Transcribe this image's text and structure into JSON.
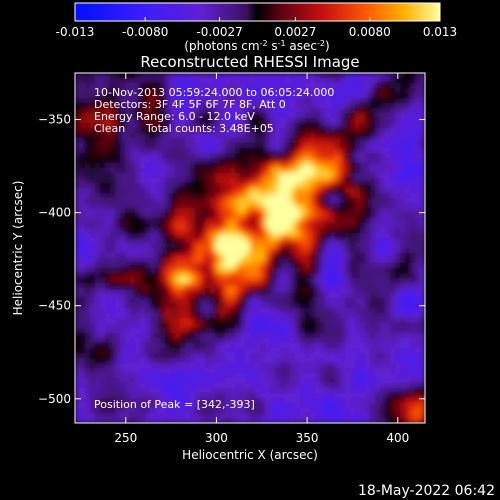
{
  "chart_data": {
    "type": "heatmap",
    "title": "Reconstructed RHESSI Image",
    "xlabel": "Heliocentric X (arcsec)",
    "ylabel": "Heliocentric Y (arcsec)",
    "xlim": [
      222,
      415
    ],
    "ylim": [
      -513,
      -325
    ],
    "x_ticks": [
      250,
      300,
      350,
      400
    ],
    "y_ticks": [
      -350,
      -400,
      -450,
      -500
    ],
    "colorbar": {
      "range": [
        -0.013,
        0.013
      ],
      "ticks": [
        "-0.013",
        "-0.0080",
        "-0.0027",
        "0.0027",
        "0.0080",
        "0.013"
      ],
      "units_prefix": "(photons cm",
      "units_exp1": "-2",
      "units_mid1": " s",
      "units_exp2": "-1",
      "units_mid2": " asec",
      "units_exp3": "-2",
      "units_suffix": ")"
    },
    "info_lines": [
      "10-Nov-2013 05:59:24.000 to 06:05:24.000",
      "Detectors: 3F 4F 5F 6F 7F 8F, Att 0",
      "Energy Range: 6.0 - 12.0 keV",
      "Clean"
    ],
    "total_counts": "Total counts: 3.48E+05",
    "peak_label": "Position of Peak = [342,-393]",
    "peak": [
      342,
      -393
    ],
    "source": {
      "center": [
        322,
        -406
      ],
      "axis_angle_deg": 38,
      "major_sigma": 50,
      "minor_sigma": 18,
      "peak_value": 0.013
    },
    "background_value": -0.004
  },
  "timestamp": "18-May-2022 06:42",
  "colors": {
    "background": "#000000",
    "text": "#ffffff"
  }
}
